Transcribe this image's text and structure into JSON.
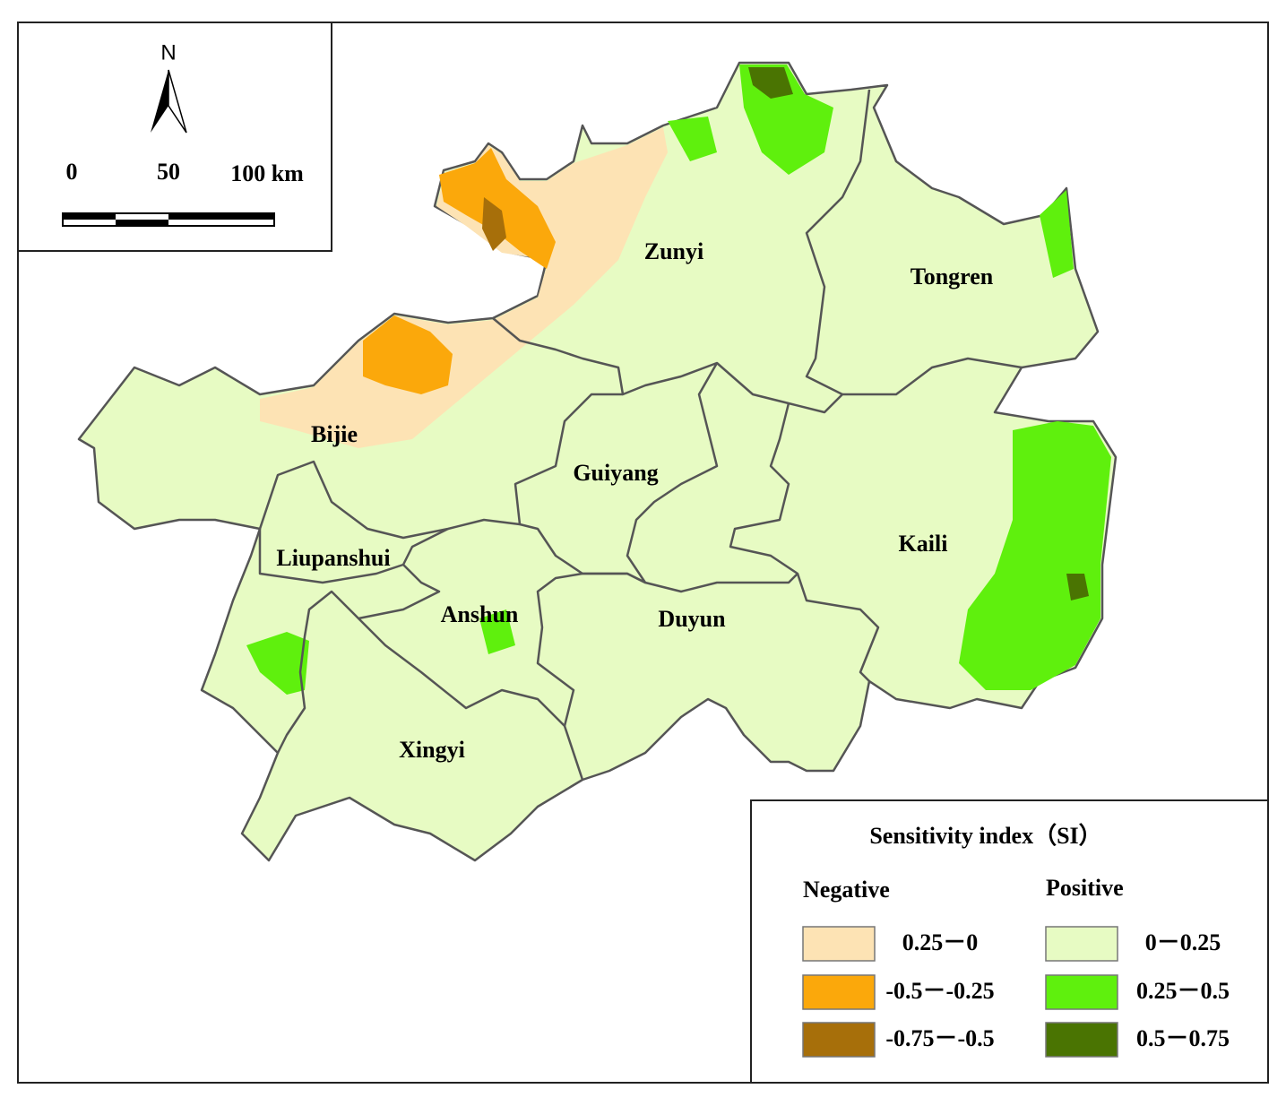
{
  "scale_bar": {
    "north": "N",
    "labels": [
      "0",
      "50",
      "100 km"
    ]
  },
  "regions": [
    "Zunyi",
    "Tongren",
    "Bijie",
    "Guiyang",
    "Kaili",
    "Liupanshui",
    "Anshun",
    "Duyun",
    "Xingyi"
  ],
  "legend": {
    "title": "Sensitivity index（SI）",
    "groups": [
      {
        "title": "Negative",
        "items": [
          {
            "label": "0.25－0",
            "color": "#fde3b4"
          },
          {
            "label": "-0.5－-0.25",
            "color": "#fba80b"
          },
          {
            "label": "-0.75－-0.5",
            "color": "#a76f0a"
          }
        ]
      },
      {
        "title": "Positive",
        "items": [
          {
            "label": "0－0.25",
            "color": "#e7fbc3"
          },
          {
            "label": "0.25－0.5",
            "color": "#5ff00d"
          },
          {
            "label": "0.5－0.75",
            "color": "#4a7402"
          }
        ]
      }
    ]
  }
}
